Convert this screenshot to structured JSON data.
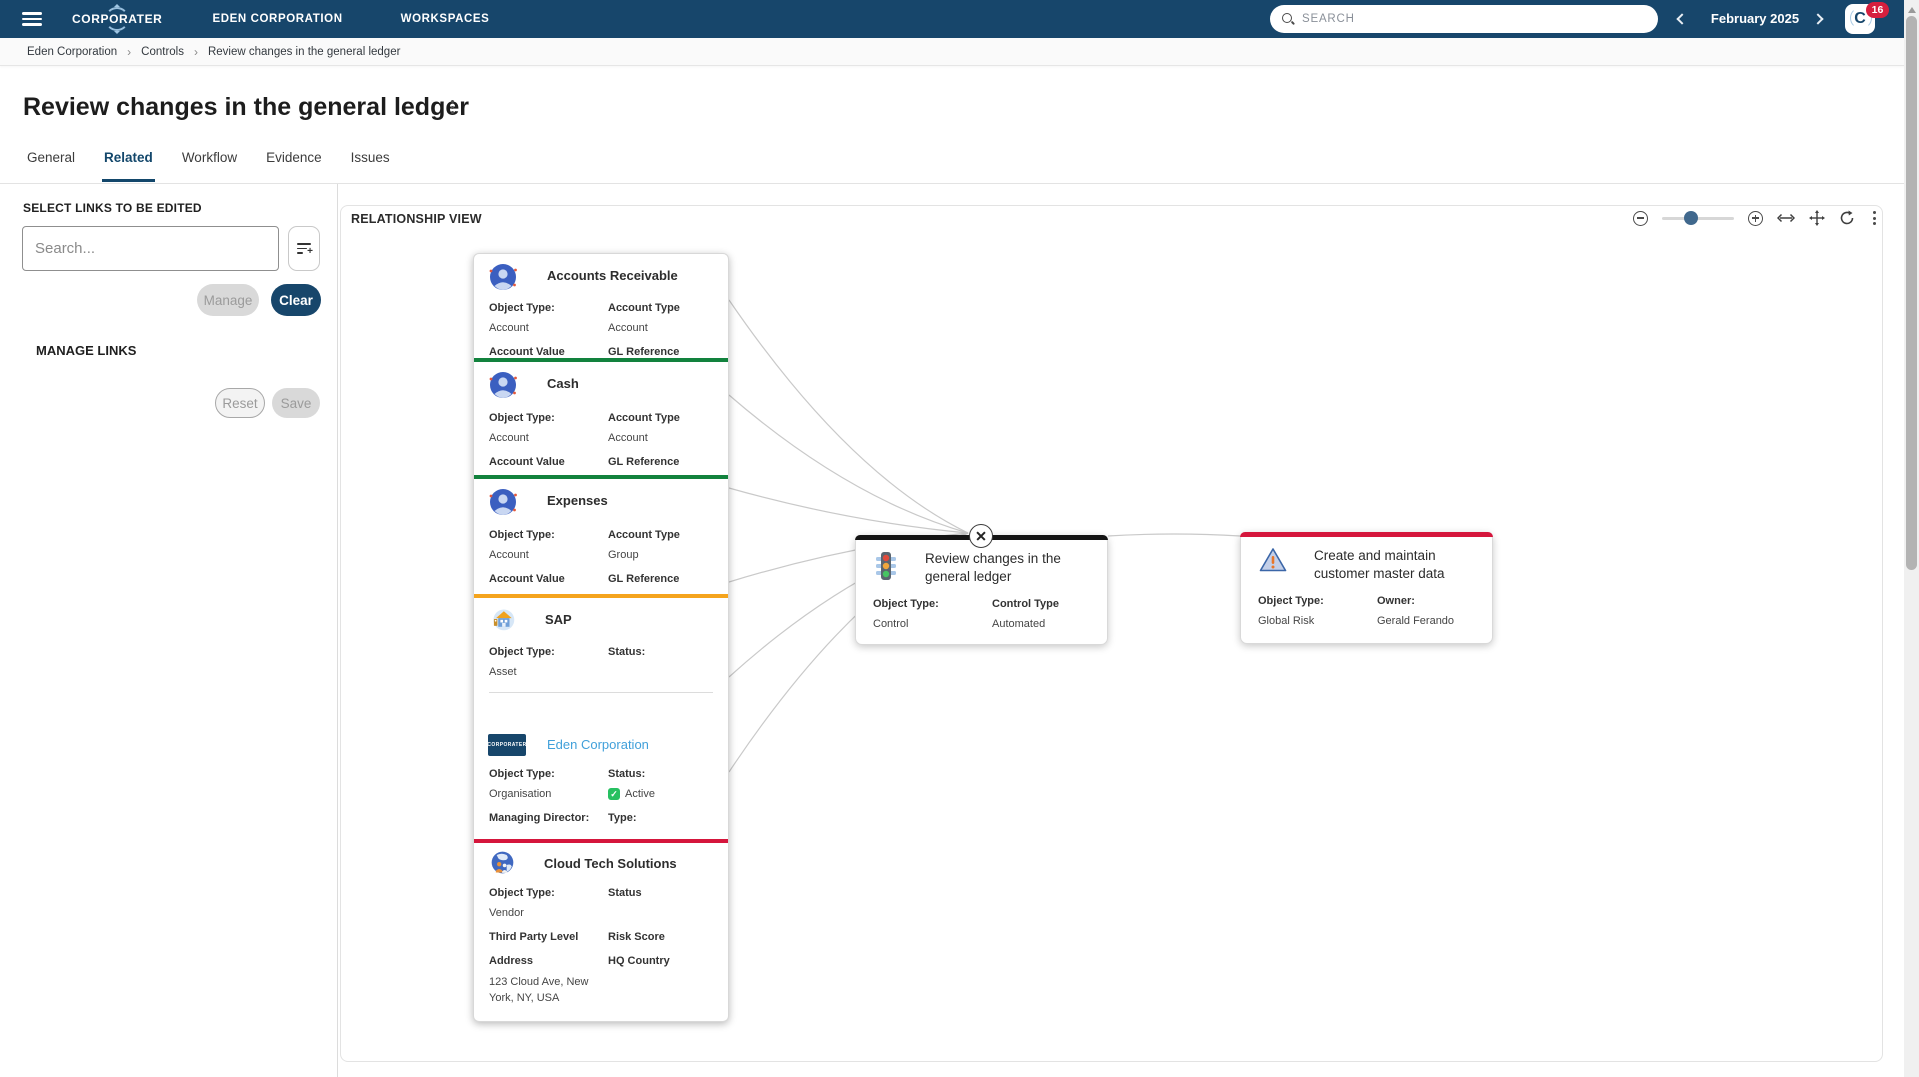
{
  "navbar": {
    "brand": "CORPORATER",
    "menu_org": "EDEN CORPORATION",
    "menu_workspaces": "WORKSPACES",
    "search_placeholder": "SEARCH",
    "period": "February 2025",
    "notification_count": "16",
    "bar_color": "#17466B"
  },
  "breadcrumb": {
    "items": [
      "Eden Corporation",
      "Controls",
      "Review changes in the general ledger"
    ],
    "separator": "›"
  },
  "page": {
    "title": "Review changes in the general ledger"
  },
  "tabs": {
    "items": [
      {
        "label": "General"
      },
      {
        "label": "Related"
      },
      {
        "label": "Workflow"
      },
      {
        "label": "Evidence"
      },
      {
        "label": "Issues"
      }
    ]
  },
  "sidebar": {
    "select_header": "SELECT LINKS TO BE EDITED",
    "search_placeholder": "Search...",
    "manage_label": "Manage",
    "clear_label": "Clear",
    "manage_links_header": "MANAGE LINKS",
    "reset_label": "Reset",
    "save_label": "Save"
  },
  "relationship": {
    "header": "RELATIONSHIP VIEW",
    "toolbar_icons": [
      "zoom-out-icon",
      "zoom-slider",
      "zoom-in-icon",
      "fit-width-icon",
      "pan-icon",
      "reset-view-icon",
      "more-options-icon"
    ],
    "accent_colors": {
      "green": "#12823D",
      "orange": "#F5A41D",
      "red": "#D5163C",
      "black": "#141414"
    },
    "edge_color": "#c9c9c9",
    "nodes": {
      "accounts_receivable": {
        "title": "Accounts Receivable",
        "icon": "person-avatar-icon",
        "l1": "Object Type:",
        "v1": "Account",
        "l2": "Account Type",
        "v2": "Account",
        "l3": "Account Value",
        "l4": "GL Reference"
      },
      "cash": {
        "title": "Cash",
        "icon": "person-avatar-icon",
        "accent": "#12823D",
        "l1": "Object Type:",
        "v1": "Account",
        "l2": "Account Type",
        "v2": "Account",
        "l3": "Account Value",
        "l4": "GL Reference"
      },
      "expenses": {
        "title": "Expenses",
        "icon": "person-avatar-icon",
        "accent": "#12823D",
        "l1": "Object Type:",
        "v1": "Account",
        "l2": "Account Type",
        "v2": "Group",
        "l3": "Account Value",
        "l4": "GL Reference"
      },
      "sap": {
        "title": "SAP",
        "icon": "asset-house-icon",
        "accent": "#F5A41D",
        "l1": "Object Type:",
        "v1": "Asset",
        "l2": "Status:"
      },
      "eden_corporation": {
        "title": "Eden Corporation",
        "icon": "corporater-logo-icon",
        "l1": "Object Type:",
        "v1": "Organisation",
        "l2": "Status:",
        "v2": "Active",
        "l3": "Managing Director:",
        "l4": "Type:"
      },
      "cloud_tech_solutions": {
        "title": "Cloud Tech Solutions",
        "icon": "globe-people-icon",
        "accent": "#D5163C",
        "l1": "Object Type:",
        "v1": "Vendor",
        "l2": "Status",
        "l3": "Third Party Level",
        "l4": "Risk Score",
        "l5": "Address",
        "v5": "123 Cloud Ave, New York, NY, USA",
        "l6": "HQ Country"
      },
      "control": {
        "title": "Review changes in the general ledger",
        "icon": "traffic-light-icon",
        "accent": "#141414",
        "l1": "Object Type:",
        "v1": "Control",
        "l2": "Control Type",
        "v2": "Automated"
      },
      "risk": {
        "title": "Create and maintain customer master data",
        "icon": "warning-triangle-icon",
        "accent": "#D5163C",
        "l1": "Object Type:",
        "v1": "Global Risk",
        "l2": "Owner:",
        "v2": "Gerald Ferando"
      }
    },
    "edges": [
      {
        "from": "accounts_receivable",
        "to": "control"
      },
      {
        "from": "cash",
        "to": "control"
      },
      {
        "from": "expenses",
        "to": "control"
      },
      {
        "from": "sap",
        "to": "control"
      },
      {
        "from": "eden_corporation",
        "to": "control"
      },
      {
        "from": "cloud_tech_solutions",
        "to": "control"
      },
      {
        "from": "control",
        "to": "risk"
      }
    ]
  }
}
